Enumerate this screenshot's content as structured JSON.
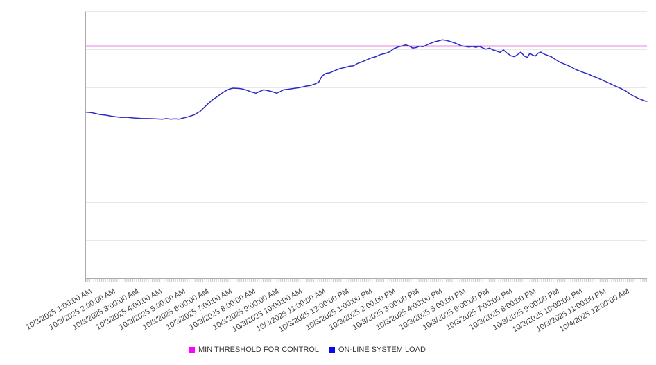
{
  "chart_data": {
    "type": "line",
    "title": "",
    "legend_position": "bottom-center",
    "grid": {
      "horizontal": true,
      "vertical": false
    },
    "x_axis": {
      "unit": "hours since 10/3/2025 12:00:00 AM",
      "min": 0.79,
      "max": 24.8,
      "minor_tick_interval_hours": 0.08333,
      "tick_labels": [
        "10/3/2025 1:00:00 AM",
        "10/3/2025 2:00:00 AM",
        "10/3/2025 3:00:00 AM",
        "10/3/2025 4:00:00 AM",
        "10/3/2025 5:00:00 AM",
        "10/3/2025 6:00:00 AM",
        "10/3/2025 7:00:00 AM",
        "10/3/2025 8:00:00 AM",
        "10/3/2025 9:00:00 AM",
        "10/3/2025 10:00:00 AM",
        "10/3/2025 11:00:00 AM",
        "10/3/2025 12:00:00 PM",
        "10/3/2025 1:00:00 PM",
        "10/3/2025 2:00:00 PM",
        "10/3/2025 3:00:00 PM",
        "10/3/2025 4:00:00 PM",
        "10/3/2025 5:00:00 PM",
        "10/3/2025 6:00:00 PM",
        "10/3/2025 7:00:00 PM",
        "10/3/2025 8:00:00 PM",
        "10/3/2025 9:00:00 PM",
        "10/3/2025 10:00:00 PM",
        "10/3/2025 11:00:00 PM",
        "10/4/2025 12:00:00 AM"
      ],
      "label_rotation_deg": -30
    },
    "y_axis": {
      "min": 0,
      "max": 100,
      "labels_visible": false,
      "gridline_count": 7,
      "scale_note": "no numeric y labels shown on screen; values are relative (percent of plot height)"
    },
    "threshold": {
      "name": "MIN THRESHOLD FOR CONTROL",
      "value": 87,
      "line_color": "#D602D6",
      "swatch_color": "#FF00FF"
    },
    "series": [
      {
        "name": "ON-LINE SYSTEM LOAD",
        "color": "#2B2BC4",
        "swatch_color": "#0A0AEE",
        "points": [
          [
            0.79,
            62.3
          ],
          [
            1.03,
            62.1
          ],
          [
            1.39,
            61.4
          ],
          [
            1.62,
            61.2
          ],
          [
            1.86,
            60.8
          ],
          [
            2.28,
            60.3
          ],
          [
            2.51,
            60.4
          ],
          [
            2.87,
            60.1
          ],
          [
            3.2,
            59.9
          ],
          [
            3.46,
            59.9
          ],
          [
            3.76,
            59.8
          ],
          [
            4.06,
            59.7
          ],
          [
            4.23,
            59.9
          ],
          [
            4.41,
            59.7
          ],
          [
            4.59,
            59.8
          ],
          [
            4.77,
            59.7
          ],
          [
            4.95,
            60.1
          ],
          [
            5.18,
            60.6
          ],
          [
            5.42,
            61.3
          ],
          [
            5.66,
            62.5
          ],
          [
            5.84,
            64.0
          ],
          [
            6.02,
            65.5
          ],
          [
            6.19,
            66.8
          ],
          [
            6.37,
            67.9
          ],
          [
            6.55,
            69.1
          ],
          [
            6.73,
            70.1
          ],
          [
            6.91,
            70.9
          ],
          [
            7.08,
            71.3
          ],
          [
            7.32,
            71.2
          ],
          [
            7.5,
            71.0
          ],
          [
            7.68,
            70.5
          ],
          [
            7.86,
            69.9
          ],
          [
            8.06,
            69.4
          ],
          [
            8.24,
            70.1
          ],
          [
            8.39,
            70.7
          ],
          [
            8.57,
            70.4
          ],
          [
            8.75,
            70.0
          ],
          [
            8.95,
            69.4
          ],
          [
            9.1,
            70.0
          ],
          [
            9.25,
            70.7
          ],
          [
            9.46,
            70.9
          ],
          [
            9.69,
            71.2
          ],
          [
            9.93,
            71.5
          ],
          [
            10.17,
            72.0
          ],
          [
            10.41,
            72.3
          ],
          [
            10.61,
            72.9
          ],
          [
            10.76,
            73.6
          ],
          [
            10.85,
            75.2
          ],
          [
            10.94,
            76.1
          ],
          [
            11.06,
            76.8
          ],
          [
            11.24,
            77.1
          ],
          [
            11.45,
            77.9
          ],
          [
            11.65,
            78.6
          ],
          [
            11.86,
            79.0
          ],
          [
            12.07,
            79.5
          ],
          [
            12.25,
            79.7
          ],
          [
            12.4,
            80.5
          ],
          [
            12.57,
            81.0
          ],
          [
            12.78,
            81.8
          ],
          [
            12.99,
            82.6
          ],
          [
            13.2,
            83.1
          ],
          [
            13.4,
            83.9
          ],
          [
            13.61,
            84.3
          ],
          [
            13.79,
            84.9
          ],
          [
            13.97,
            86.1
          ],
          [
            14.15,
            86.7
          ],
          [
            14.32,
            87.1
          ],
          [
            14.47,
            87.5
          ],
          [
            14.62,
            87.1
          ],
          [
            14.77,
            86.3
          ],
          [
            14.92,
            86.5
          ],
          [
            15.07,
            87.0
          ],
          [
            15.21,
            86.8
          ],
          [
            15.36,
            87.4
          ],
          [
            15.51,
            88.0
          ],
          [
            15.69,
            88.6
          ],
          [
            15.87,
            89.0
          ],
          [
            16.04,
            89.4
          ],
          [
            16.22,
            89.2
          ],
          [
            16.4,
            88.7
          ],
          [
            16.58,
            88.2
          ],
          [
            16.73,
            87.6
          ],
          [
            16.88,
            87.1
          ],
          [
            17.02,
            86.9
          ],
          [
            17.17,
            86.7
          ],
          [
            17.32,
            86.9
          ],
          [
            17.47,
            86.6
          ],
          [
            17.62,
            86.9
          ],
          [
            17.77,
            86.4
          ],
          [
            17.91,
            85.9
          ],
          [
            18.06,
            86.3
          ],
          [
            18.21,
            85.6
          ],
          [
            18.36,
            85.2
          ],
          [
            18.51,
            84.7
          ],
          [
            18.66,
            85.6
          ],
          [
            18.8,
            84.5
          ],
          [
            18.98,
            83.4
          ],
          [
            19.13,
            83.1
          ],
          [
            19.28,
            84.0
          ],
          [
            19.4,
            84.8
          ],
          [
            19.55,
            83.3
          ],
          [
            19.69,
            82.8
          ],
          [
            19.78,
            84.4
          ],
          [
            19.9,
            83.7
          ],
          [
            20.02,
            83.3
          ],
          [
            20.14,
            84.4
          ],
          [
            20.26,
            84.8
          ],
          [
            20.41,
            84.0
          ],
          [
            20.56,
            83.5
          ],
          [
            20.7,
            83.1
          ],
          [
            20.85,
            82.2
          ],
          [
            21.03,
            81.2
          ],
          [
            21.21,
            80.5
          ],
          [
            21.39,
            79.9
          ],
          [
            21.56,
            79.2
          ],
          [
            21.74,
            78.3
          ],
          [
            21.92,
            77.7
          ],
          [
            22.1,
            77.1
          ],
          [
            22.28,
            76.6
          ],
          [
            22.45,
            75.9
          ],
          [
            22.63,
            75.3
          ],
          [
            22.81,
            74.6
          ],
          [
            22.99,
            73.9
          ],
          [
            23.17,
            73.2
          ],
          [
            23.34,
            72.5
          ],
          [
            23.52,
            71.8
          ],
          [
            23.7,
            71.1
          ],
          [
            23.88,
            70.3
          ],
          [
            24.06,
            69.2
          ],
          [
            24.23,
            68.3
          ],
          [
            24.41,
            67.5
          ],
          [
            24.59,
            66.9
          ],
          [
            24.74,
            66.4
          ],
          [
            24.8,
            66.4
          ]
        ]
      }
    ]
  },
  "legend": {
    "threshold_label": "MIN THRESHOLD FOR CONTROL",
    "series_label": "ON-LINE SYSTEM LOAD"
  }
}
